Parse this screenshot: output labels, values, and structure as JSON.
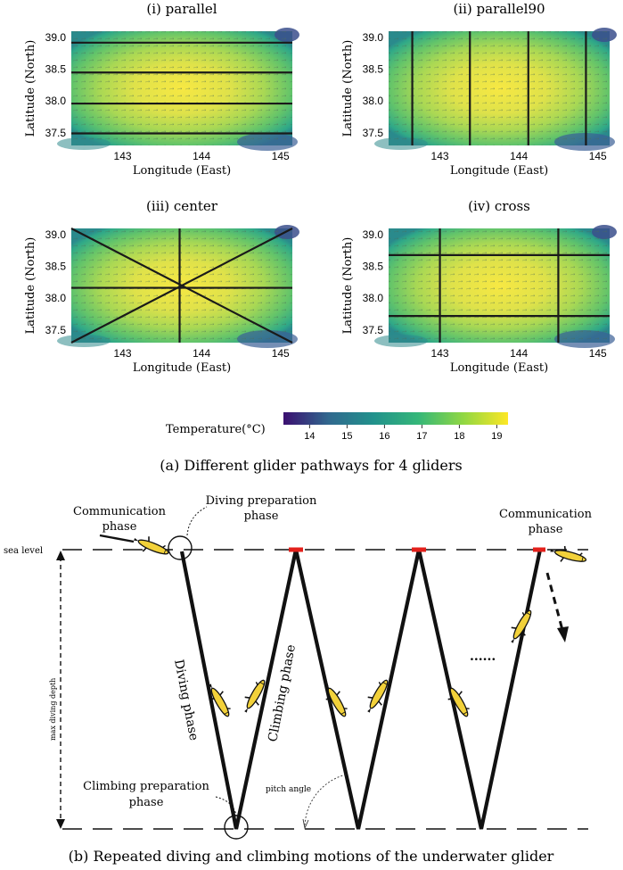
{
  "figure_a": {
    "caption": "(a) Different glider pathways for 4 gliders",
    "panels": [
      {
        "id": "parallel",
        "title": "(i) parallel",
        "pathway": "horizontal",
        "lines_lat": [
          38.92,
          38.45,
          37.96,
          37.49
        ]
      },
      {
        "id": "parallel90",
        "title": "(ii) parallel90",
        "pathway": "vertical",
        "lines_lon": [
          142.65,
          143.38,
          144.12,
          144.85
        ]
      },
      {
        "id": "center",
        "title": "(iii) center",
        "pathway": "center"
      },
      {
        "id": "cross",
        "title": "(iv) cross",
        "pathway": "cross",
        "lines_lat": [
          38.68,
          37.72
        ],
        "lines_lon": [
          143.0,
          144.5
        ]
      }
    ],
    "axes": {
      "xlabel": "Longitude (East)",
      "ylabel": "Latitude (North)",
      "xticks": [
        "143",
        "144",
        "145"
      ],
      "yticks": [
        "39.0",
        "38.5",
        "38.0",
        "37.5"
      ],
      "xlim": [
        142.35,
        145.15
      ],
      "ylim": [
        37.3,
        39.1
      ]
    },
    "colorbar": {
      "label": "Temperature(°C)",
      "ticks": [
        "14",
        "15",
        "16",
        "17",
        "18",
        "19"
      ],
      "range": [
        13.3,
        19.3
      ],
      "colors": [
        "#3b0f70",
        "#31688e",
        "#21918c",
        "#35b779",
        "#90d743",
        "#fde725"
      ]
    }
  },
  "figure_b": {
    "caption": "(b) Repeated diving and climbing motions of the underwater glider",
    "labels": {
      "sea_level": "sea level",
      "max_depth": "max diving depth",
      "comm_left": [
        "Communication",
        "phase"
      ],
      "comm_right": [
        "Communication",
        "phase"
      ],
      "diving_prep": [
        "Diving preparation",
        "phase"
      ],
      "climbing_prep": [
        "Climbing preparation",
        "phase"
      ],
      "diving_phase": "Diving phase",
      "climbing_phase": "Climbing phase",
      "pitch_angle": "pitch angle",
      "ellipsis": "......"
    },
    "colors": {
      "glider_body": "#f2d13a",
      "surface_marker": "#e3201b",
      "path": "#111111"
    }
  }
}
